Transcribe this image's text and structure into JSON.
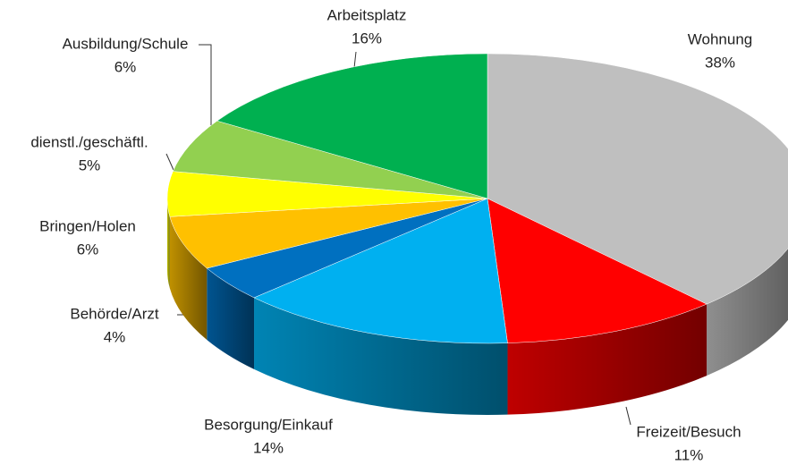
{
  "chart_data": {
    "type": "pie",
    "categories": [
      "Wohnung",
      "Freizeit/Besuch",
      "Besorgung/Einkauf",
      "Behörde/Arzt",
      "Bringen/Holen",
      "dienstl./geschäftl.",
      "Ausbildung/Schule",
      "Arbeitsplatz"
    ],
    "values": [
      38,
      11,
      14,
      4,
      6,
      5,
      6,
      16
    ],
    "value_labels": [
      "38%",
      "11%",
      "14%",
      "4%",
      "6%",
      "5%",
      "6%",
      "16%"
    ],
    "colors": [
      "#bfbfbf",
      "#ff0000",
      "#00b0f0",
      "#0070c0",
      "#ffc000",
      "#ffff00",
      "#92d050",
      "#00b050"
    ]
  }
}
